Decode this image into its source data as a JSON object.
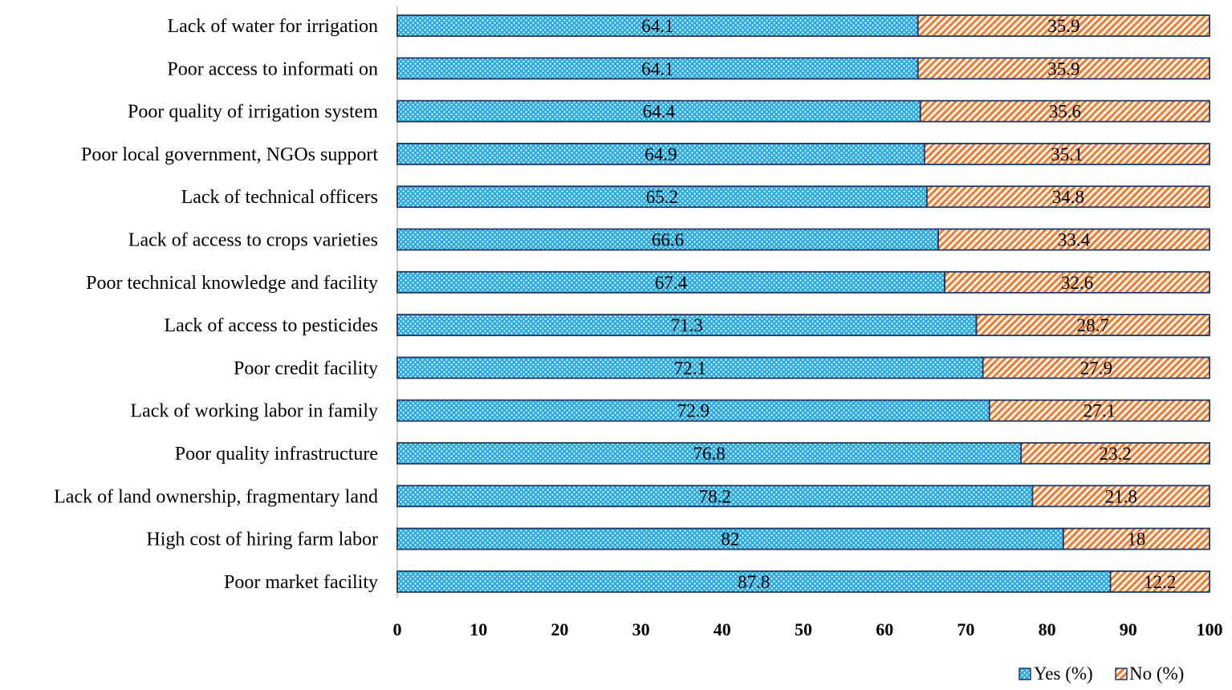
{
  "chart_data": {
    "type": "bar",
    "orientation": "horizontal",
    "stacked": true,
    "categories": [
      "Lack of water for irrigation",
      "Poor access to informati on",
      "Poor quality of  irrigation system",
      "Poor local government, NGOs support",
      "Lack of technical officers",
      "Lack of access to crops varieties",
      "Poor technical knowledge and facility",
      "Lack of access to pesticides",
      "Poor credit facility",
      "Lack of working labor in family",
      "Poor quality infrastructure",
      "Lack of land ownership, fragmentary land",
      "High cost of hiring farm labor",
      "Poor market facility"
    ],
    "series": [
      {
        "name": "Yes (%)",
        "color": "#29ABE2",
        "pattern": "dots",
        "values": [
          64.1,
          64.1,
          64.4,
          64.9,
          65.2,
          66.6,
          67.4,
          71.3,
          72.1,
          72.9,
          76.8,
          78.2,
          82,
          87.8
        ],
        "labels": [
          "64.1",
          "64.1",
          "64.4",
          "64.9",
          "65.2",
          "66.6",
          "67.4",
          "71.3",
          "72.1",
          "72.9",
          "76.8",
          "78.2",
          "82",
          "87.8"
        ]
      },
      {
        "name": "No (%)",
        "color": "#ED7D31",
        "pattern": "diagonal-stripes",
        "values": [
          35.9,
          35.9,
          35.6,
          35.1,
          34.8,
          33.4,
          32.6,
          28.7,
          27.9,
          27.1,
          23.2,
          21.8,
          18,
          12.2
        ],
        "labels": [
          "35.9",
          "35.9",
          "35.6",
          "35.1",
          "34.8",
          "33.4",
          "32.6",
          "28.7",
          "27.9",
          "27.1",
          "23.2",
          "21.8",
          "18",
          "12.2"
        ]
      }
    ],
    "xlim": [
      0,
      100
    ],
    "xticks": [
      "0",
      "10",
      "20",
      "30",
      "40",
      "50",
      "60",
      "70",
      "80",
      "90",
      "100"
    ],
    "title": "",
    "xlabel": "",
    "ylabel": "",
    "grid": false,
    "legend_position": "bottom-right",
    "bar_outline_color": "#1F3864"
  }
}
